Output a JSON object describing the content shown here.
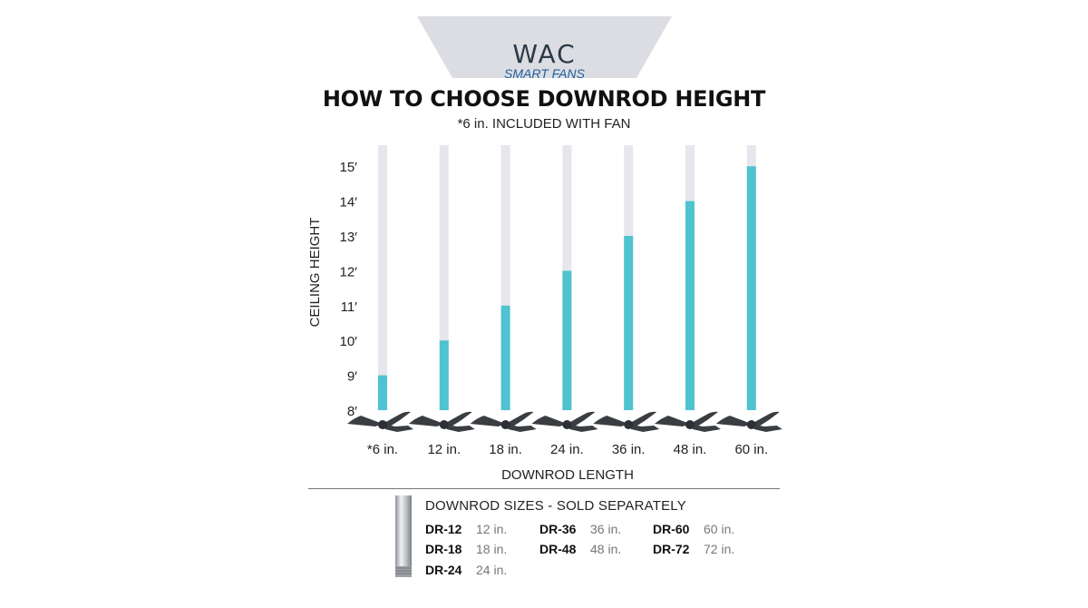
{
  "brand": {
    "name": "WAC",
    "subline": "SMART FANS"
  },
  "header": {
    "title": "HOW TO CHOOSE DOWNROD HEIGHT",
    "subtitle": "*6 in. INCLUDED WITH FAN"
  },
  "chart_data": {
    "type": "bar",
    "ylabel": "CEILING HEIGHT",
    "xlabel": "DOWNROD LENGTH",
    "categories": [
      "*6 in.",
      "12 in.",
      "18 in.",
      "24 in.",
      "36 in.",
      "48 in.",
      "60 in."
    ],
    "values": [
      9,
      10,
      11,
      12,
      13,
      14,
      15
    ],
    "y_ticks": [
      "8′",
      "9′",
      "10′",
      "11′",
      "12′",
      "13′",
      "14′",
      "15′"
    ],
    "ylim": [
      8,
      15
    ],
    "grid": false,
    "colors": {
      "bar": "#4fc3cf",
      "track": "#e6e7ec",
      "fan": "#3a3d41"
    }
  },
  "downrod_sizes": {
    "title": "DOWNROD SIZES - SOLD SEPARATELY",
    "items": [
      {
        "code": "DR-12",
        "length": "12 in."
      },
      {
        "code": "DR-18",
        "length": "18 in."
      },
      {
        "code": "DR-24",
        "length": "24 in."
      },
      {
        "code": "DR-36",
        "length": "36 in."
      },
      {
        "code": "DR-48",
        "length": "48 in."
      },
      {
        "code": "DR-60",
        "length": "60 in."
      },
      {
        "code": "DR-72",
        "length": "72 in."
      }
    ]
  },
  "colors": {
    "banner": "#dcdde2",
    "bar": "#4fc3cf",
    "brand_blue": "#1f5fa0"
  }
}
